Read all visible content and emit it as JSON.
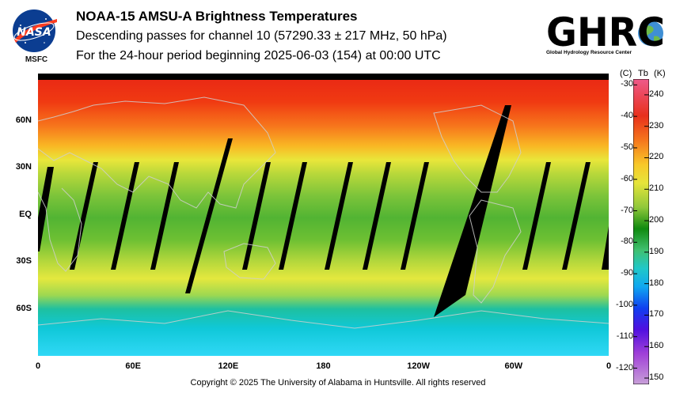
{
  "header": {
    "title": "NOAA-15 AMSU-A Brightness Temperatures",
    "subtitle": "Descending passes for channel 10 (57290.33 ± 217 MHz, 50 hPa)",
    "period": "For the 24-hour period beginning 2025-06-03 (154) at 00:00 UTC"
  },
  "logos": {
    "nasa_text": "NASA",
    "nasa_sub": "MSFC",
    "ghrc_text": "GHRC",
    "ghrc_sub": "Global Hydrology Resource Center"
  },
  "map": {
    "lat_labels": [
      "60N",
      "30N",
      "EQ",
      "30S",
      "60S"
    ],
    "lat_values": [
      60,
      30,
      0,
      -30,
      -60
    ],
    "lon_labels": [
      "0",
      "60E",
      "120E",
      "180",
      "120W",
      "60W",
      "0"
    ],
    "lon_values": [
      0,
      60,
      120,
      180,
      240,
      300,
      360
    ],
    "lat_range": [
      -90,
      90
    ],
    "lon_range": [
      0,
      360
    ],
    "missing_color": "#000000"
  },
  "colorbar": {
    "header_c": "(C)",
    "header_tb": "Tb",
    "header_k": "(K)",
    "celsius_ticks": [
      "-30",
      "-40",
      "-50",
      "-60",
      "-70",
      "-80",
      "-90",
      "-100",
      "-110",
      "-120"
    ],
    "celsius_values": [
      -30,
      -40,
      -50,
      -60,
      -70,
      -80,
      -90,
      -100,
      -110,
      -120
    ],
    "kelvin_ticks": [
      "240",
      "230",
      "220",
      "210",
      "200",
      "190",
      "180",
      "170",
      "160",
      "150"
    ],
    "kelvin_values": [
      240,
      230,
      220,
      210,
      200,
      190,
      180,
      170,
      160,
      150
    ],
    "kelvin_range": [
      148,
      245
    ]
  },
  "footer": {
    "copyright": "Copyright © 2025 The University of Alabama in Huntsville.  All rights reserved"
  }
}
